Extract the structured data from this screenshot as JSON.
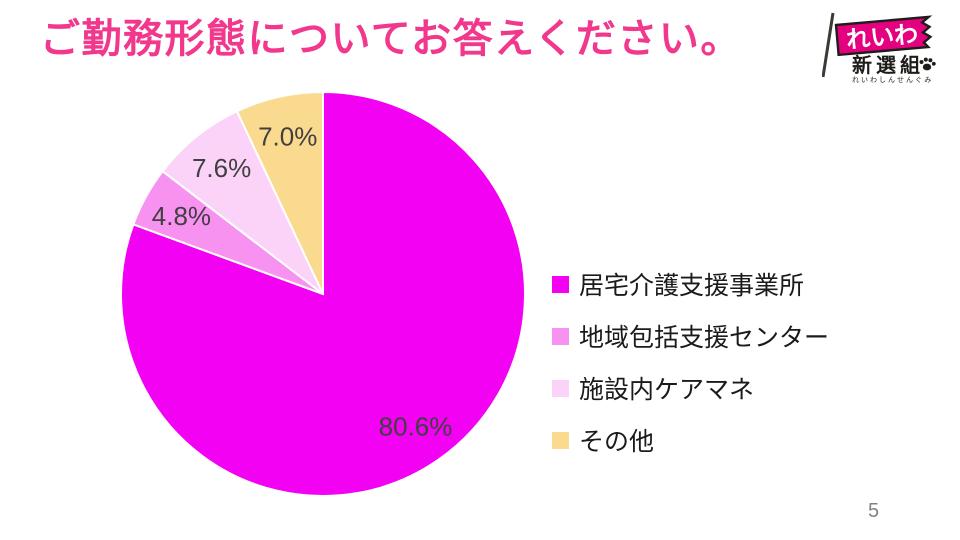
{
  "slide": {
    "title": "ご勤務形態についてお答えください。",
    "title_color": "#F1388C",
    "page_number": "5",
    "background": "#FFFFFF"
  },
  "logo": {
    "flag_text": "れいわ",
    "name_text": "新選組",
    "subtext": "れいわしんせんぐみ",
    "flag_color": "#E4007F",
    "pole_color": "#3D3A35"
  },
  "chart_data": {
    "type": "pie",
    "title": "",
    "start_angle_deg": 0,
    "direction": "clockwise",
    "legend_position": "right",
    "grid": false,
    "label_color": "#404040",
    "label_radius_frac": 0.8,
    "slice_border_color": "#FFFFFF",
    "series": [
      {
        "label": "居宅介護支援事業所",
        "value": 80.6,
        "display": "80.6%",
        "color": "#F201F2"
      },
      {
        "label": "地域包括支援センター",
        "value": 4.8,
        "display": "4.8%",
        "color": "#F892F0"
      },
      {
        "label": "施設内ケアマネ",
        "value": 7.6,
        "display": "7.6%",
        "color": "#FBD3F8"
      },
      {
        "label": "その他",
        "value": 7.0,
        "display": "7.0%",
        "color": "#FADA8F"
      }
    ]
  }
}
